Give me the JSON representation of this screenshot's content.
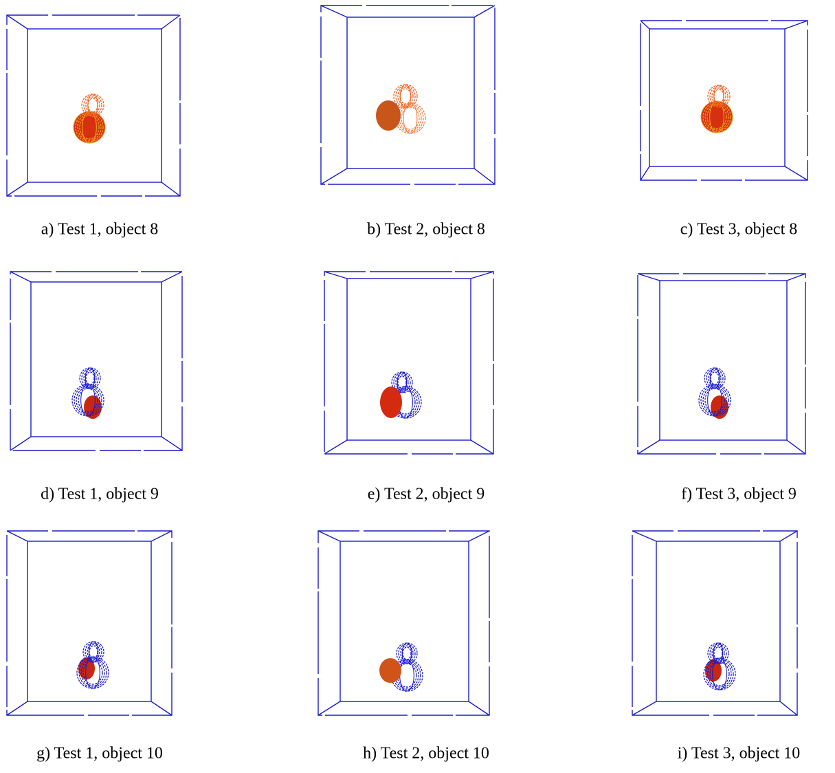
{
  "figure": {
    "panels": [
      {
        "caption": "a) Test 1, object 8"
      },
      {
        "caption": "b) Test 2, object 8"
      },
      {
        "caption": "c) Test 3, object 8"
      },
      {
        "caption": "d) Test 1, object 9"
      },
      {
        "caption": "e) Test 2, object 9"
      },
      {
        "caption": "f) Test 3, object 9"
      },
      {
        "caption": "g) Test 1, object 10"
      },
      {
        "caption": "h) Test 2, object 10"
      },
      {
        "caption": "i) Test 3, object 10"
      }
    ]
  }
}
